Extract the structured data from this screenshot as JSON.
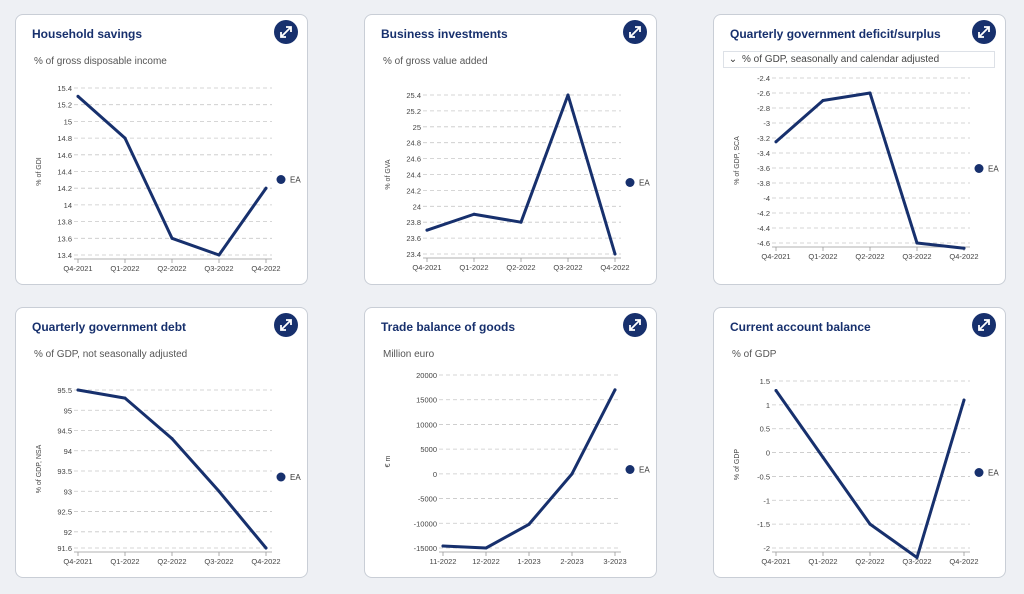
{
  "colors": {
    "series": "#17306d",
    "grid": "#c8c8c8",
    "expand_button": "#17306d"
  },
  "icons": {
    "expand": "expand-icon",
    "chevron": "chevron-down-icon"
  },
  "cards": [
    {
      "title": "Household savings",
      "subtitle": "% of gross disposable income",
      "chart_data": {
        "type": "line",
        "title": "Household savings",
        "ylabel": "% of GDI",
        "ylim": [
          13.4,
          15.4
        ],
        "yticks": [
          13.4,
          13.6,
          13.8,
          14,
          14.2,
          14.4,
          14.6,
          14.8,
          15,
          15.2,
          15.4
        ],
        "ytick_labels": [
          "13.4",
          "13.6",
          "13.8",
          "14",
          "14.2",
          "14.4",
          "14.6",
          "14.8",
          "15",
          "15.2",
          "15.4"
        ],
        "categories": [
          "Q4-2021",
          "Q1-2022",
          "Q2-2022",
          "Q3-2022",
          "Q4-2022"
        ],
        "series": [
          {
            "name": "EA",
            "values": [
              15.3,
              14.8,
              13.6,
              13.4,
              14.2
            ]
          }
        ],
        "legend": "right",
        "grid": true
      }
    },
    {
      "title": "Business investments",
      "subtitle": "% of gross value added",
      "chart_data": {
        "type": "line",
        "title": "Business investments",
        "ylabel": "% of GVA",
        "ylim": [
          23.4,
          25.4
        ],
        "yticks": [
          23.4,
          23.6,
          23.8,
          24,
          24.2,
          24.4,
          24.6,
          24.8,
          25,
          25.2,
          25.4
        ],
        "ytick_labels": [
          "23.4",
          "23.6",
          "23.8",
          "24",
          "24.2",
          "24.4",
          "24.6",
          "24.8",
          "25",
          "25.2",
          "25.4"
        ],
        "categories": [
          "Q4-2021",
          "Q1-2022",
          "Q2-2022",
          "Q3-2022",
          "Q4-2022"
        ],
        "series": [
          {
            "name": "EA",
            "values": [
              23.7,
              23.9,
              23.8,
              25.4,
              23.4
            ]
          }
        ],
        "legend": "right",
        "grid": true
      }
    },
    {
      "title": "Quarterly government deficit/surplus",
      "subtitle": "% of GDP, seasonally and calendar adjusted",
      "chart_data": {
        "type": "line",
        "title": "Quarterly government deficit/surplus",
        "ylabel": "% of GDP, SCA",
        "ylim": [
          -4.6,
          -2.4
        ],
        "yticks": [
          -4.6,
          -4.4,
          -4.2,
          -4,
          -3.8,
          -3.6,
          -3.4,
          -3.2,
          -3,
          -2.8,
          -2.6,
          -2.4
        ],
        "ytick_labels": [
          "-4.6",
          "-4.4",
          "-4.2",
          "-4",
          "-3.8",
          "-3.6",
          "-3.4",
          "-3.2",
          "-3",
          "-2.8",
          "-2.6",
          "-2.4"
        ],
        "categories": [
          "Q4-2021",
          "Q1-2022",
          "Q2-2022",
          "Q3-2022",
          "Q4-2022"
        ],
        "series": [
          {
            "name": "EA",
            "values": [
              -3.25,
              -2.7,
              -2.6,
              -4.6,
              -4.67
            ]
          }
        ],
        "legend": "right",
        "grid": true
      }
    },
    {
      "title": "Quarterly government debt",
      "subtitle": "% of GDP, not seasonally adjusted",
      "chart_data": {
        "type": "line",
        "title": "Quarterly government debt",
        "ylabel": "% of GDP, NSA",
        "ylim": [
          91.6,
          95.5
        ],
        "yticks": [
          91.6,
          92,
          92.5,
          93,
          93.5,
          94,
          94.5,
          95,
          95.5
        ],
        "ytick_labels": [
          "91.6",
          "92",
          "92.5",
          "93",
          "93.5",
          "94",
          "94.5",
          "95",
          "95.5"
        ],
        "categories": [
          "Q4-2021",
          "Q1-2022",
          "Q2-2022",
          "Q3-2022",
          "Q4-2022"
        ],
        "series": [
          {
            "name": "EA",
            "values": [
              95.5,
              95.3,
              94.3,
              93.0,
              91.6
            ]
          }
        ],
        "legend": "right",
        "grid": true
      }
    },
    {
      "title": "Trade balance of goods",
      "subtitle": "Million euro",
      "chart_data": {
        "type": "line",
        "title": "Trade balance of goods",
        "ylabel": "€ m",
        "ylim": [
          -15000,
          20000
        ],
        "yticks": [
          -15000,
          -10000,
          -5000,
          0,
          5000,
          10000,
          15000,
          20000
        ],
        "ytick_labels": [
          "-15000",
          "-10000",
          "-5000",
          "0",
          "5000",
          "10000",
          "15000",
          "20000"
        ],
        "categories": [
          "11-2022",
          "12-2022",
          "1-2023",
          "2-2023",
          "3-2023"
        ],
        "series": [
          {
            "name": "EA",
            "values": [
              -14600,
              -15000,
              -10200,
              0,
              17000
            ]
          }
        ],
        "legend": "right",
        "grid": true
      }
    },
    {
      "title": "Current account balance",
      "subtitle": "% of GDP",
      "chart_data": {
        "type": "line",
        "title": "Current account balance",
        "ylabel": "% of GDP",
        "ylim": [
          -2,
          1.5
        ],
        "yticks": [
          -2,
          -1.5,
          -1,
          -0.5,
          0,
          0.5,
          1,
          1.5
        ],
        "ytick_labels": [
          "-2",
          "-1.5",
          "-1",
          "-0.5",
          "0",
          "0.5",
          "1",
          "1.5"
        ],
        "categories": [
          "Q4-2021",
          "Q1-2022",
          "Q2-2022",
          "Q3-2022",
          "Q4-2022"
        ],
        "series": [
          {
            "name": "EA",
            "values": [
              1.3,
              -0.1,
              -1.5,
              -2.2,
              1.1
            ]
          }
        ],
        "legend": "right",
        "grid": true
      }
    }
  ]
}
